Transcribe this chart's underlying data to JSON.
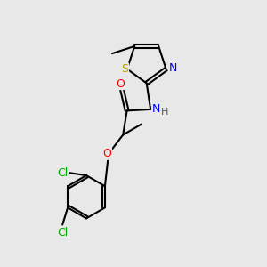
{
  "bg_color": "#e8e8e8",
  "bond_color": "#000000",
  "atom_colors": {
    "S": "#b8a000",
    "N": "#0000ff",
    "O": "#ff0000",
    "Cl": "#00aa00",
    "C": "#000000"
  },
  "bond_width": 1.5,
  "fontsize": 9
}
